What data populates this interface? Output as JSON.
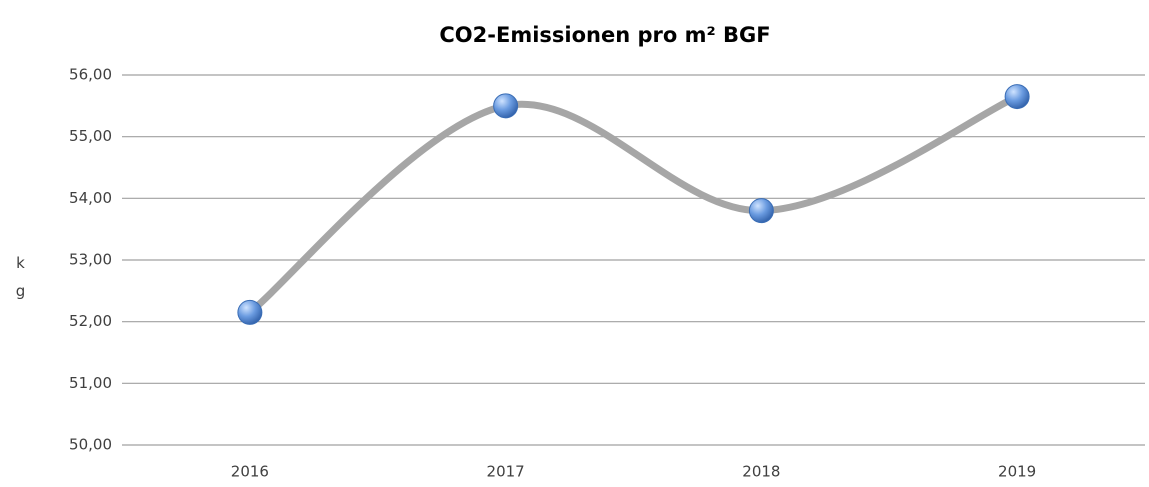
{
  "chart_data": {
    "type": "line",
    "title": "CO2-Emissionen pro m² BGF",
    "ylabel": "kg",
    "categories": [
      "2016",
      "2017",
      "2018",
      "2019"
    ],
    "series": [
      {
        "name": "CO2-Emissionen",
        "color": "#a6a6a6",
        "values": [
          52.15,
          55.5,
          53.8,
          55.65
        ]
      }
    ],
    "ylim": [
      50,
      56
    ],
    "yticks": [
      {
        "value": 50,
        "label": "50,00"
      },
      {
        "value": 51,
        "label": "51,00"
      },
      {
        "value": 52,
        "label": "52,00"
      },
      {
        "value": 53,
        "label": "53,00"
      },
      {
        "value": 54,
        "label": "54,00"
      },
      {
        "value": 55,
        "label": "55,00"
      },
      {
        "value": 56,
        "label": "56,00"
      }
    ],
    "grid": true,
    "smooth": true,
    "marker_color": "#4f81bd"
  }
}
